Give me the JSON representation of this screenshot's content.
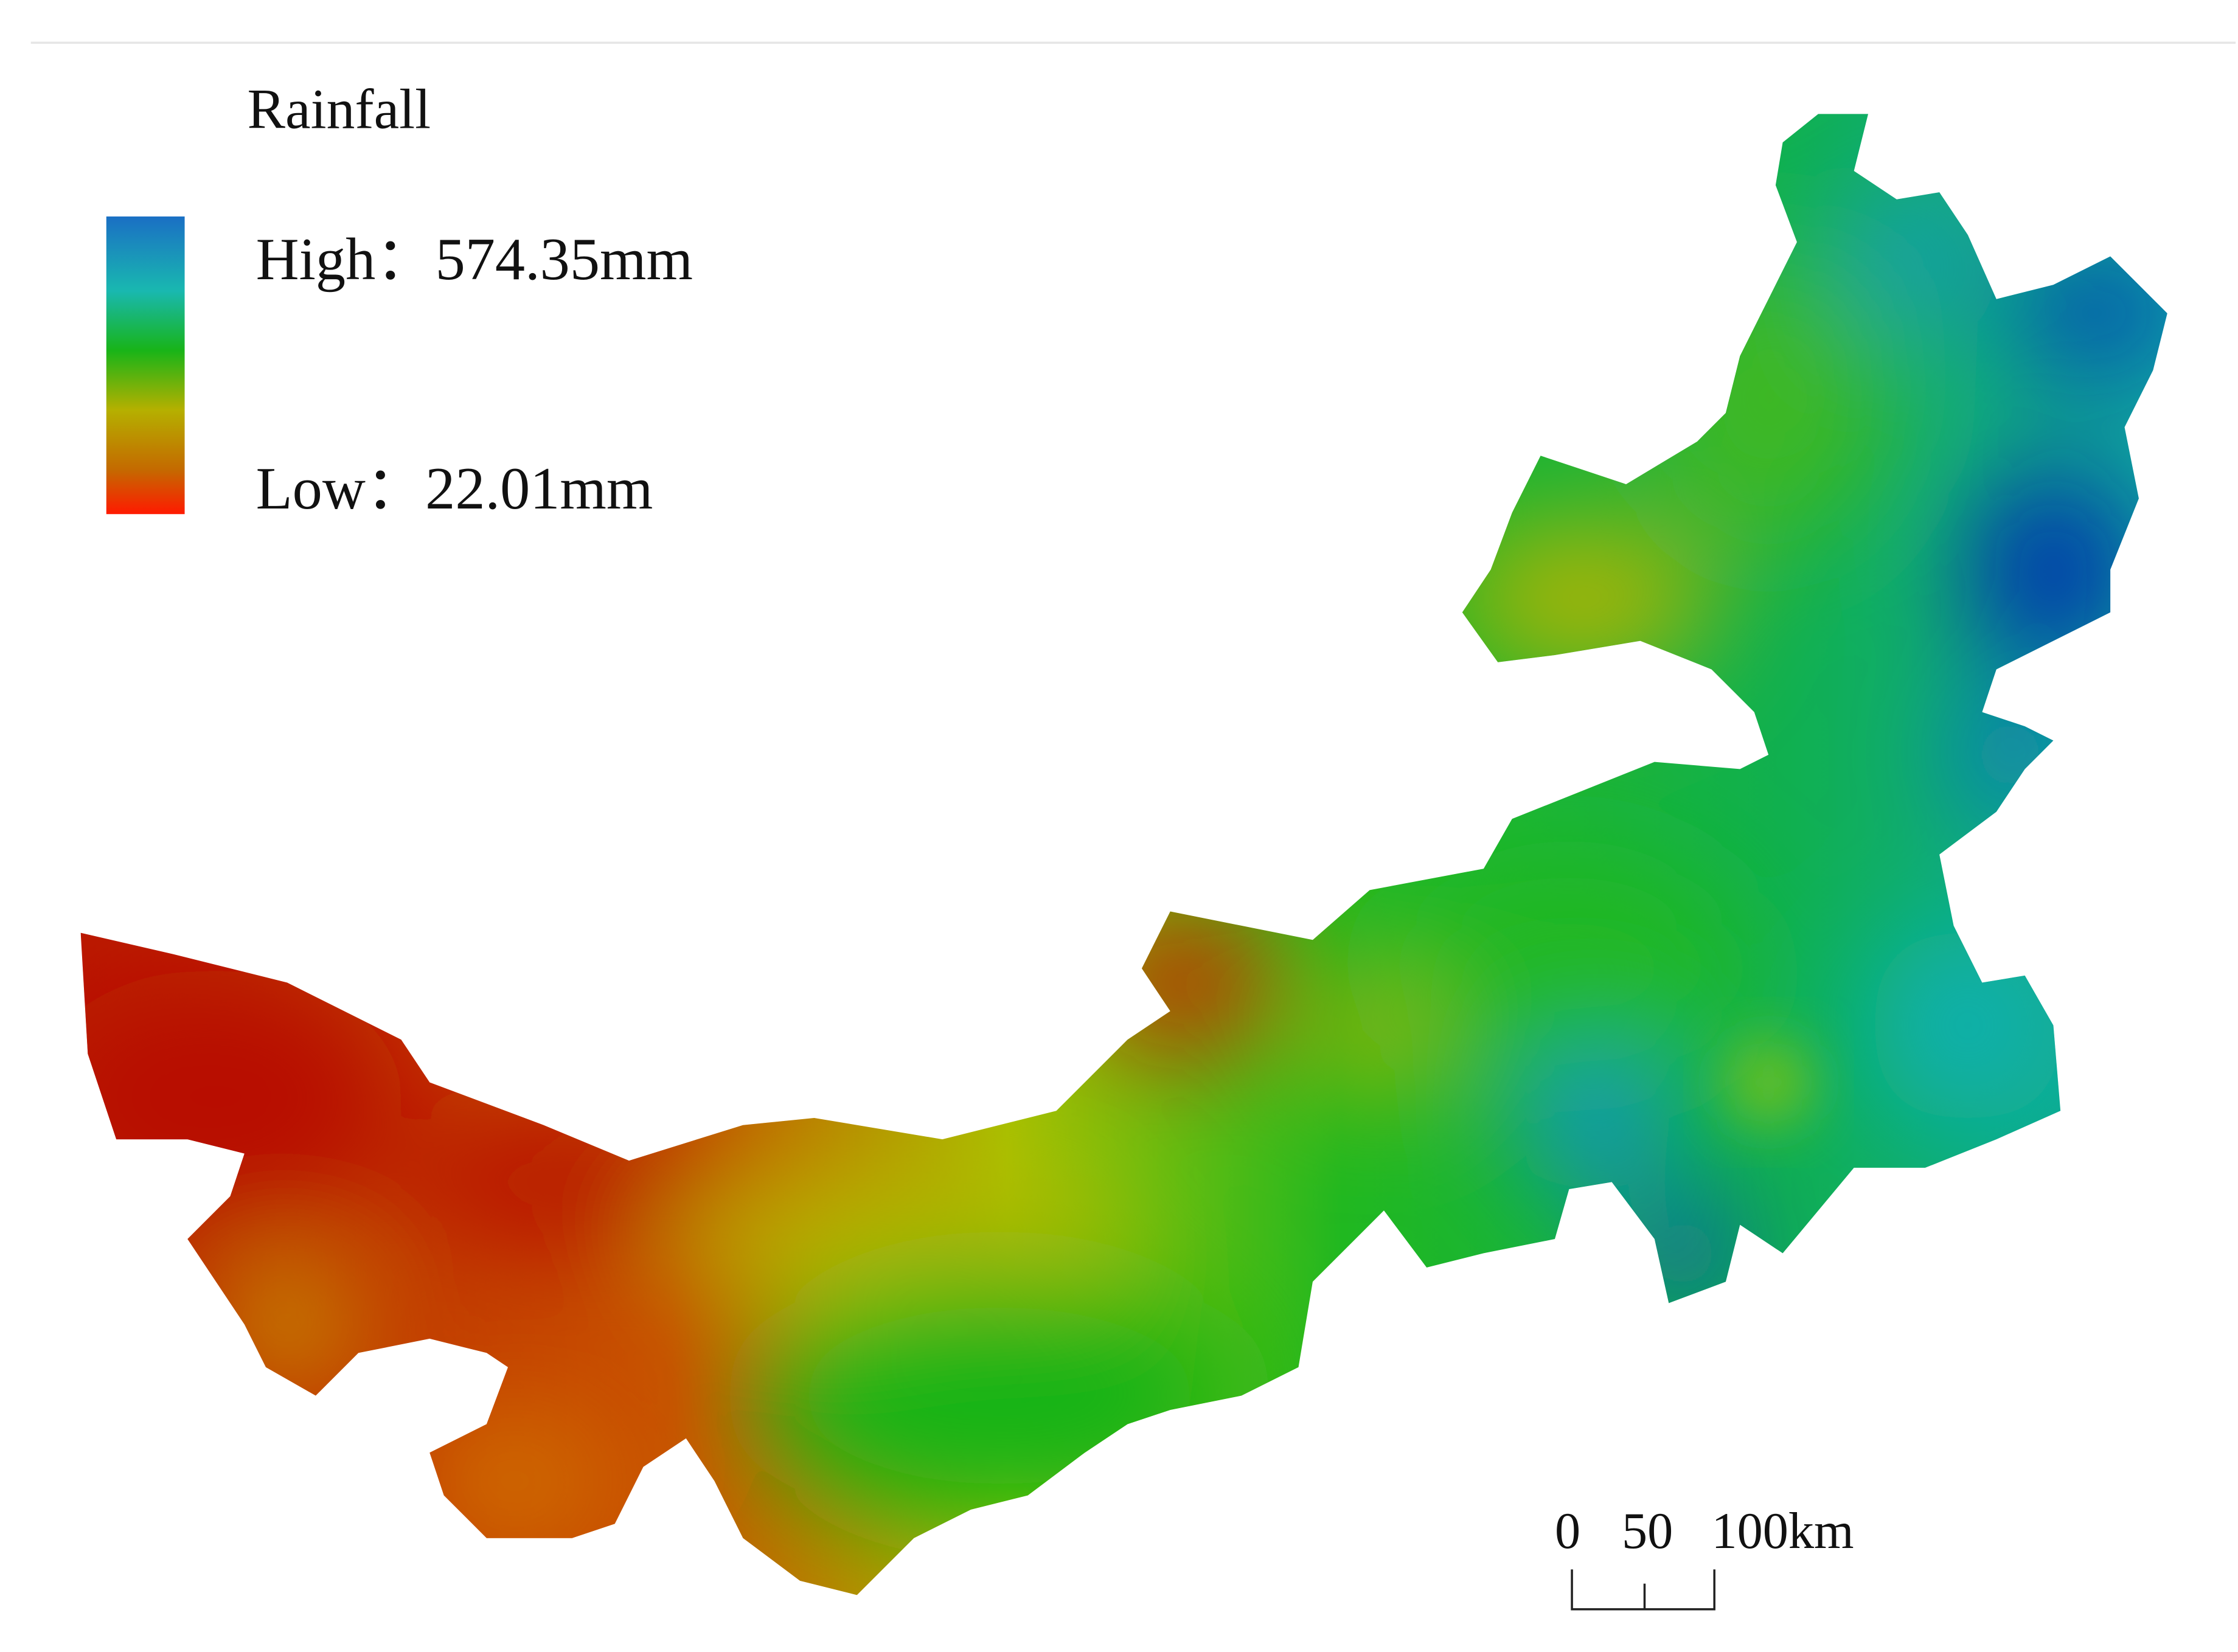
{
  "legend": {
    "title": "Rainfall",
    "high": "High：574.35mm",
    "low": "Low：22.01mm"
  },
  "scale_bar": {
    "labels": [
      "0",
      "50",
      "100km"
    ]
  }
}
